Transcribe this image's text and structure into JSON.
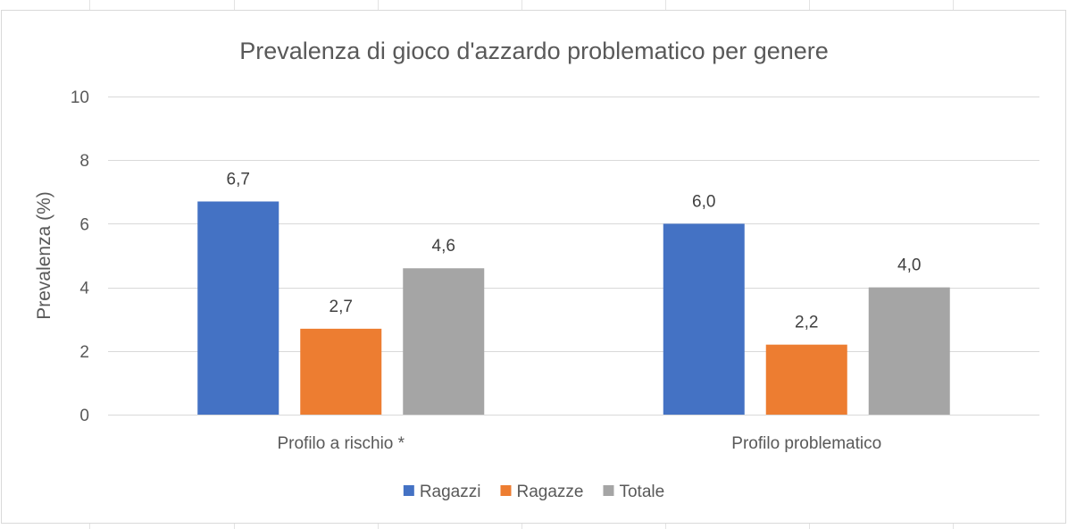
{
  "chart_data": {
    "type": "bar",
    "title": "Prevalenza di gioco d'azzardo problematico per genere",
    "ylabel": "Prevalenza (%)",
    "xlabel": "",
    "ylim": [
      0,
      10
    ],
    "yticks": [
      0,
      2,
      4,
      6,
      8,
      10
    ],
    "grid": true,
    "legend_position": "bottom",
    "categories": [
      "Profilo a rischio *",
      "Profilo problematico"
    ],
    "series": [
      {
        "name": "Ragazzi",
        "color": "#4472c4",
        "values": [
          6.7,
          6.0
        ],
        "labels": [
          "6,7",
          "6,0"
        ]
      },
      {
        "name": "Ragazze",
        "color": "#ed7d31",
        "values": [
          2.7,
          2.2
        ],
        "labels": [
          "2,7",
          "2,2"
        ]
      },
      {
        "name": "Totale",
        "color": "#a5a5a5",
        "values": [
          4.6,
          4.0
        ],
        "labels": [
          "4,6",
          "4,0"
        ]
      }
    ]
  }
}
